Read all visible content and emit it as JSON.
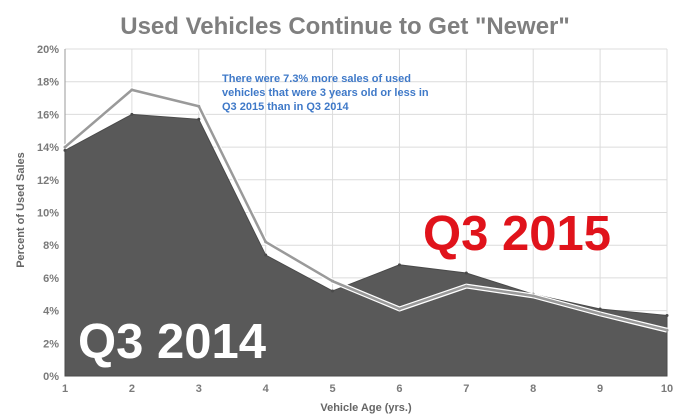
{
  "chart_data": {
    "type": "area",
    "title": "Used Vehicles Continue to Get \"Newer\"",
    "xlabel": "Vehicle Age (yrs.)",
    "ylabel": "Percent of Used Sales",
    "x": [
      1,
      2,
      3,
      4,
      5,
      6,
      7,
      8,
      9,
      10
    ],
    "xticks": [
      "1",
      "2",
      "3",
      "4",
      "5",
      "6",
      "7",
      "8",
      "9",
      "10"
    ],
    "yticks": [
      "0%",
      "2%",
      "4%",
      "6%",
      "8%",
      "10%",
      "12%",
      "14%",
      "16%",
      "18%",
      "20%"
    ],
    "ylim": [
      0,
      20
    ],
    "grid": true,
    "series": [
      {
        "name": "Q3 2014",
        "style": "filled-area",
        "color": "#595959",
        "values": [
          13.8,
          16.0,
          15.7,
          7.4,
          5.2,
          6.8,
          6.3,
          5.0,
          4.1,
          3.7
        ]
      },
      {
        "name": "Q3 2015",
        "style": "line",
        "color": "#9a9a9a",
        "values": [
          14.0,
          17.5,
          16.5,
          8.2,
          5.8,
          4.1,
          5.5,
          4.9,
          3.8,
          2.8
        ]
      }
    ],
    "annotation": {
      "lines": [
        "There were 7.3% more sales of used",
        "vehicles that were 3 years old or less in",
        "Q3 2015 than in Q3 2014"
      ]
    },
    "labels": {
      "q2015": "Q3 2015",
      "q2014": "Q3 2014"
    },
    "colors": {
      "annotation": "#3f79c8",
      "label_2015": "#e0131b",
      "label_2014": "#ffffff"
    }
  }
}
